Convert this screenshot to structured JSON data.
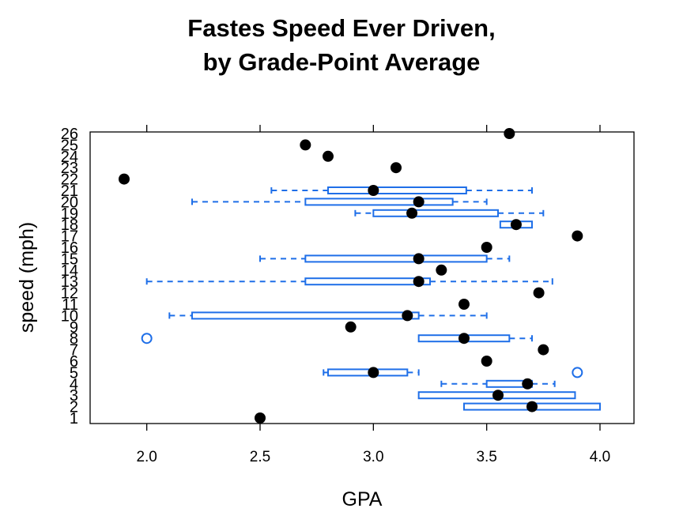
{
  "chart_data": {
    "type": "box-dot",
    "title_lines": [
      "Fastes Speed Ever Driven,",
      "by Grade-Point Average"
    ],
    "xlabel": "GPA",
    "ylabel": "speed (mph)",
    "xlim": [
      1.75,
      4.15
    ],
    "x_ticks": [
      2.0,
      2.5,
      3.0,
      3.5,
      4.0
    ],
    "x_tick_labels": [
      "2.0",
      "2.5",
      "3.0",
      "3.5",
      "4.0"
    ],
    "y_categories": [
      "1",
      "2",
      "3",
      "4",
      "5",
      "6",
      "7",
      "8",
      "9",
      "10",
      "11",
      "12",
      "13",
      "14",
      "15",
      "16",
      "17",
      "18",
      "19",
      "20",
      "21",
      "22",
      "23",
      "24",
      "25",
      "26"
    ],
    "box_color": "#1f6fe8",
    "dot_color": "#000000",
    "dots": [
      {
        "y": 1,
        "x": 2.5
      },
      {
        "y": 2,
        "x": 3.7
      },
      {
        "y": 3,
        "x": 3.55
      },
      {
        "y": 4,
        "x": 3.68
      },
      {
        "y": 5,
        "x": 3.0
      },
      {
        "y": 6,
        "x": 3.5
      },
      {
        "y": 7,
        "x": 3.75
      },
      {
        "y": 8,
        "x": 3.4
      },
      {
        "y": 9,
        "x": 2.9
      },
      {
        "y": 10,
        "x": 3.15
      },
      {
        "y": 11,
        "x": 3.4
      },
      {
        "y": 12,
        "x": 3.73
      },
      {
        "y": 13,
        "x": 3.2
      },
      {
        "y": 14,
        "x": 3.3
      },
      {
        "y": 15,
        "x": 3.2
      },
      {
        "y": 16,
        "x": 3.5
      },
      {
        "y": 17,
        "x": 3.9
      },
      {
        "y": 18,
        "x": 3.63
      },
      {
        "y": 19,
        "x": 3.17
      },
      {
        "y": 20,
        "x": 3.2
      },
      {
        "y": 21,
        "x": 3.0
      },
      {
        "y": 22,
        "x": 1.9
      },
      {
        "y": 23,
        "x": 3.1
      },
      {
        "y": 24,
        "x": 2.8
      },
      {
        "y": 25,
        "x": 2.7
      },
      {
        "y": 26,
        "x": 3.6
      }
    ],
    "boxes": [
      {
        "y": 2,
        "q1": 3.4,
        "q3": 4.0
      },
      {
        "y": 3,
        "q1": 3.2,
        "q3": 3.89
      },
      {
        "y": 4,
        "wlo": 3.3,
        "q1": 3.5,
        "q3": 3.7,
        "whi": 3.8
      },
      {
        "y": 5,
        "wlo": 2.78,
        "q1": 2.8,
        "q3": 3.15,
        "whi": 3.2,
        "outliers": [
          3.9
        ]
      },
      {
        "y": 8,
        "q1": 3.2,
        "q3": 3.6,
        "whi": 3.7,
        "outliers": [
          2.0
        ]
      },
      {
        "y": 10,
        "wlo": 2.1,
        "q1": 2.2,
        "q3": 3.2,
        "whi": 3.5
      },
      {
        "y": 13,
        "wlo": 2.0,
        "q1": 2.7,
        "q3": 3.25,
        "whi": 3.79
      },
      {
        "y": 15,
        "wlo": 2.5,
        "q1": 2.7,
        "q3": 3.5,
        "whi": 3.6
      },
      {
        "y": 18,
        "q1": 3.56,
        "q3": 3.7
      },
      {
        "y": 19,
        "wlo": 2.92,
        "q1": 3.0,
        "q3": 3.55,
        "whi": 3.75
      },
      {
        "y": 20,
        "wlo": 2.2,
        "q1": 2.7,
        "q3": 3.35,
        "whi": 3.5
      },
      {
        "y": 21,
        "wlo": 2.55,
        "q1": 2.8,
        "q3": 3.41,
        "whi": 3.7
      }
    ]
  }
}
